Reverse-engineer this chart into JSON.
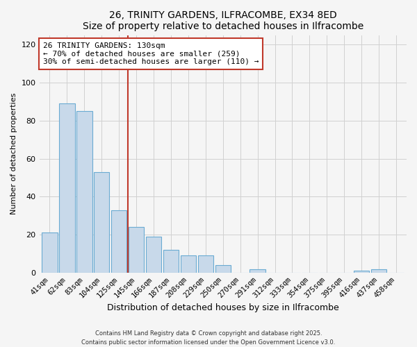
{
  "title": "26, TRINITY GARDENS, ILFRACOMBE, EX34 8ED",
  "subtitle": "Size of property relative to detached houses in Ilfracombe",
  "xlabel": "Distribution of detached houses by size in Ilfracombe",
  "ylabel": "Number of detached properties",
  "bar_labels": [
    "41sqm",
    "62sqm",
    "83sqm",
    "104sqm",
    "125sqm",
    "145sqm",
    "166sqm",
    "187sqm",
    "208sqm",
    "229sqm",
    "250sqm",
    "270sqm",
    "291sqm",
    "312sqm",
    "333sqm",
    "354sqm",
    "375sqm",
    "395sqm",
    "416sqm",
    "437sqm",
    "458sqm"
  ],
  "bar_values": [
    21,
    89,
    85,
    53,
    33,
    24,
    19,
    12,
    9,
    9,
    4,
    0,
    2,
    0,
    0,
    0,
    0,
    0,
    1,
    2,
    0
  ],
  "bar_color": "#c8d9ea",
  "bar_edgecolor": "#6aabd2",
  "ylim": [
    0,
    125
  ],
  "yticks": [
    0,
    20,
    40,
    60,
    80,
    100,
    120
  ],
  "vline_x": 4.5,
  "vline_color": "#c0392b",
  "annotation_title": "26 TRINITY GARDENS: 130sqm",
  "annotation_line1": "← 70% of detached houses are smaller (259)",
  "annotation_line2": "30% of semi-detached houses are larger (110) →",
  "annotation_box_color": "#c0392b",
  "footer1": "Contains HM Land Registry data © Crown copyright and database right 2025.",
  "footer2": "Contains public sector information licensed under the Open Government Licence v3.0.",
  "background_color": "#f5f5f5",
  "plot_background": "#f5f5f5",
  "grid_color": "#d0d0d0"
}
